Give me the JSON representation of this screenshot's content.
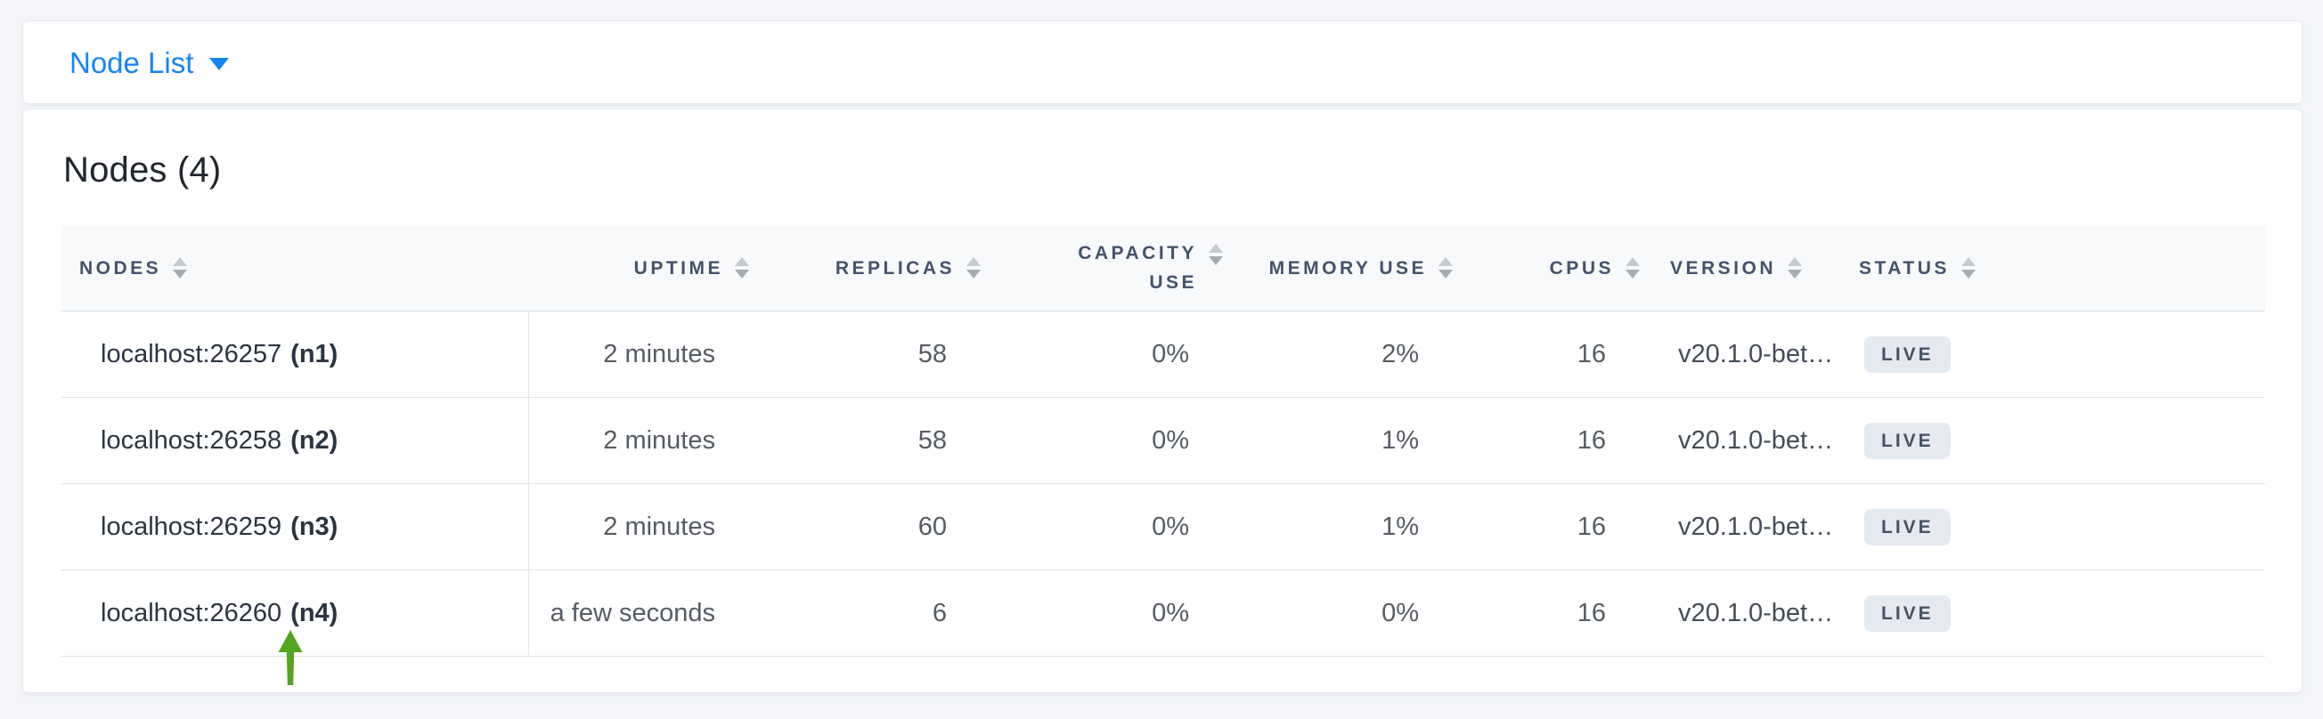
{
  "view_selector": {
    "label": "Node List"
  },
  "panel": {
    "title": "Nodes (4)",
    "table": {
      "columns": [
        {
          "label": "NODES",
          "align": "left"
        },
        {
          "label": "UPTIME",
          "align": "right"
        },
        {
          "label": "REPLICAS",
          "align": "right"
        },
        {
          "label": "CAPACITY USE",
          "align": "right",
          "wrap": true
        },
        {
          "label": "MEMORY USE",
          "align": "right"
        },
        {
          "label": "CPUS",
          "align": "right"
        },
        {
          "label": "VERSION",
          "align": "left"
        },
        {
          "label": "STATUS",
          "align": "left"
        }
      ],
      "rows": [
        {
          "address": "localhost:26257",
          "node_id": "(n1)",
          "uptime": "2 minutes",
          "replicas": "58",
          "capacity_use": "0%",
          "memory_use": "2%",
          "cpus": "16",
          "version": "v20.1.0-bet…",
          "status": "LIVE"
        },
        {
          "address": "localhost:26258",
          "node_id": "(n2)",
          "uptime": "2 minutes",
          "replicas": "58",
          "capacity_use": "0%",
          "memory_use": "1%",
          "cpus": "16",
          "version": "v20.1.0-bet…",
          "status": "LIVE"
        },
        {
          "address": "localhost:26259",
          "node_id": "(n3)",
          "uptime": "2 minutes",
          "replicas": "60",
          "capacity_use": "0%",
          "memory_use": "1%",
          "cpus": "16",
          "version": "v20.1.0-bet…",
          "status": "LIVE"
        },
        {
          "address": "localhost:26260",
          "node_id": "(n4)",
          "uptime": "a few seconds",
          "replicas": "6",
          "capacity_use": "0%",
          "memory_use": "0%",
          "cpus": "16",
          "version": "v20.1.0-bet…",
          "status": "LIVE"
        }
      ]
    }
  },
  "annotation": {
    "icon": "green-up-arrow",
    "points_at": "(n4)"
  },
  "colors": {
    "accent_blue": "#1685f3",
    "header_text": "#44536b",
    "badge_bg": "#e5eaf2",
    "badge_text": "#475366",
    "arrow_green": "#53a51f",
    "page_bg": "#f3f5f9"
  }
}
